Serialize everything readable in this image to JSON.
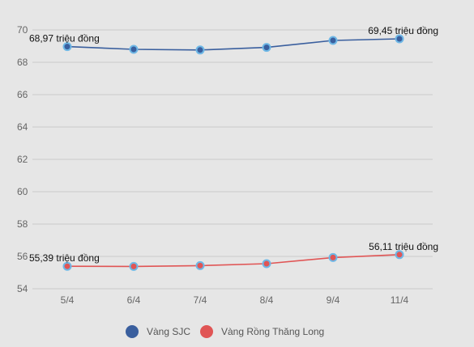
{
  "chart_data": {
    "type": "line",
    "title": "",
    "xlabel": "",
    "ylabel": "",
    "categories": [
      "5/4",
      "6/4",
      "7/4",
      "8/4",
      "9/4",
      "11/4"
    ],
    "ylim": [
      54,
      70
    ],
    "yticks": [
      "54",
      "56",
      "58",
      "60",
      "62",
      "64",
      "66",
      "68",
      "70"
    ],
    "grid": true,
    "legend_position": "bottom",
    "series": [
      {
        "name": "Vàng SJC",
        "values": [
          68.97,
          68.8,
          68.76,
          68.92,
          69.35,
          69.45
        ],
        "line_color": "#3a5f9e",
        "legend_color": "#3a5f9e",
        "marker_fill": "#3a5f9e",
        "marker_stroke": "#6fb8e6",
        "annotations": [
          {
            "index": 0,
            "text": "68,97 triệu đồng"
          },
          {
            "index": 5,
            "text": "69,45 triệu đồng"
          }
        ]
      },
      {
        "name": "Vàng Rồng Thăng Long",
        "values": [
          55.39,
          55.38,
          55.43,
          55.55,
          55.93,
          56.11
        ],
        "line_color": "#e05555",
        "legend_color": "#e05555",
        "marker_fill": "#e05555",
        "marker_stroke": "#6fb8e6",
        "annotations": [
          {
            "index": 0,
            "text": "55,39 triệu đồng"
          },
          {
            "index": 5,
            "text": "56,11 triệu đồng"
          }
        ]
      }
    ]
  }
}
